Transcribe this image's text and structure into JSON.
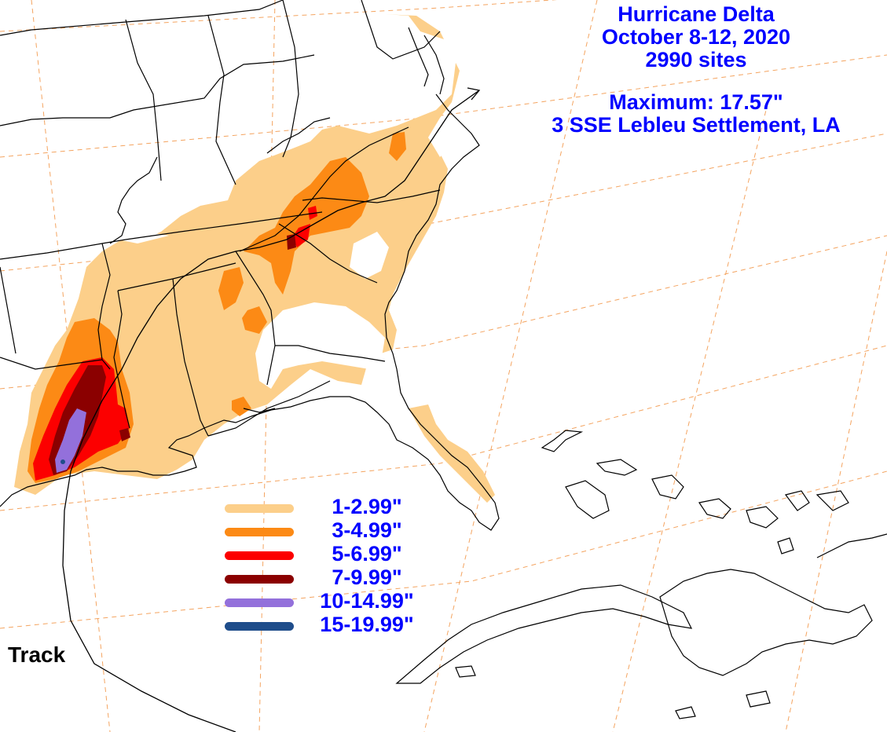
{
  "map": {
    "title": "Hurricane Delta",
    "dates": "October 8-12, 2020",
    "sites": "2990 sites",
    "maximum": "Maximum: 17.57\"",
    "max_location": "3 SSE Lebleu Settlement, LA",
    "track_label": "Track",
    "legend": [
      {
        "label": "1-2.99\"",
        "color": "#fccf8a"
      },
      {
        "label": "3-4.99\"",
        "color": "#fc8a15"
      },
      {
        "label": "5-6.99\"",
        "color": "#fc0000"
      },
      {
        "label": "7-9.99\"",
        "color": "#8b0000"
      },
      {
        "label": "10-14.99\"",
        "color": "#9370db"
      },
      {
        "label": "15-19.99\"",
        "color": "#1f4d8b"
      }
    ],
    "colors": {
      "text": "#0000ff",
      "boundaries": "#000000",
      "graticule": "#f4a460",
      "background": "#ffffff"
    }
  }
}
